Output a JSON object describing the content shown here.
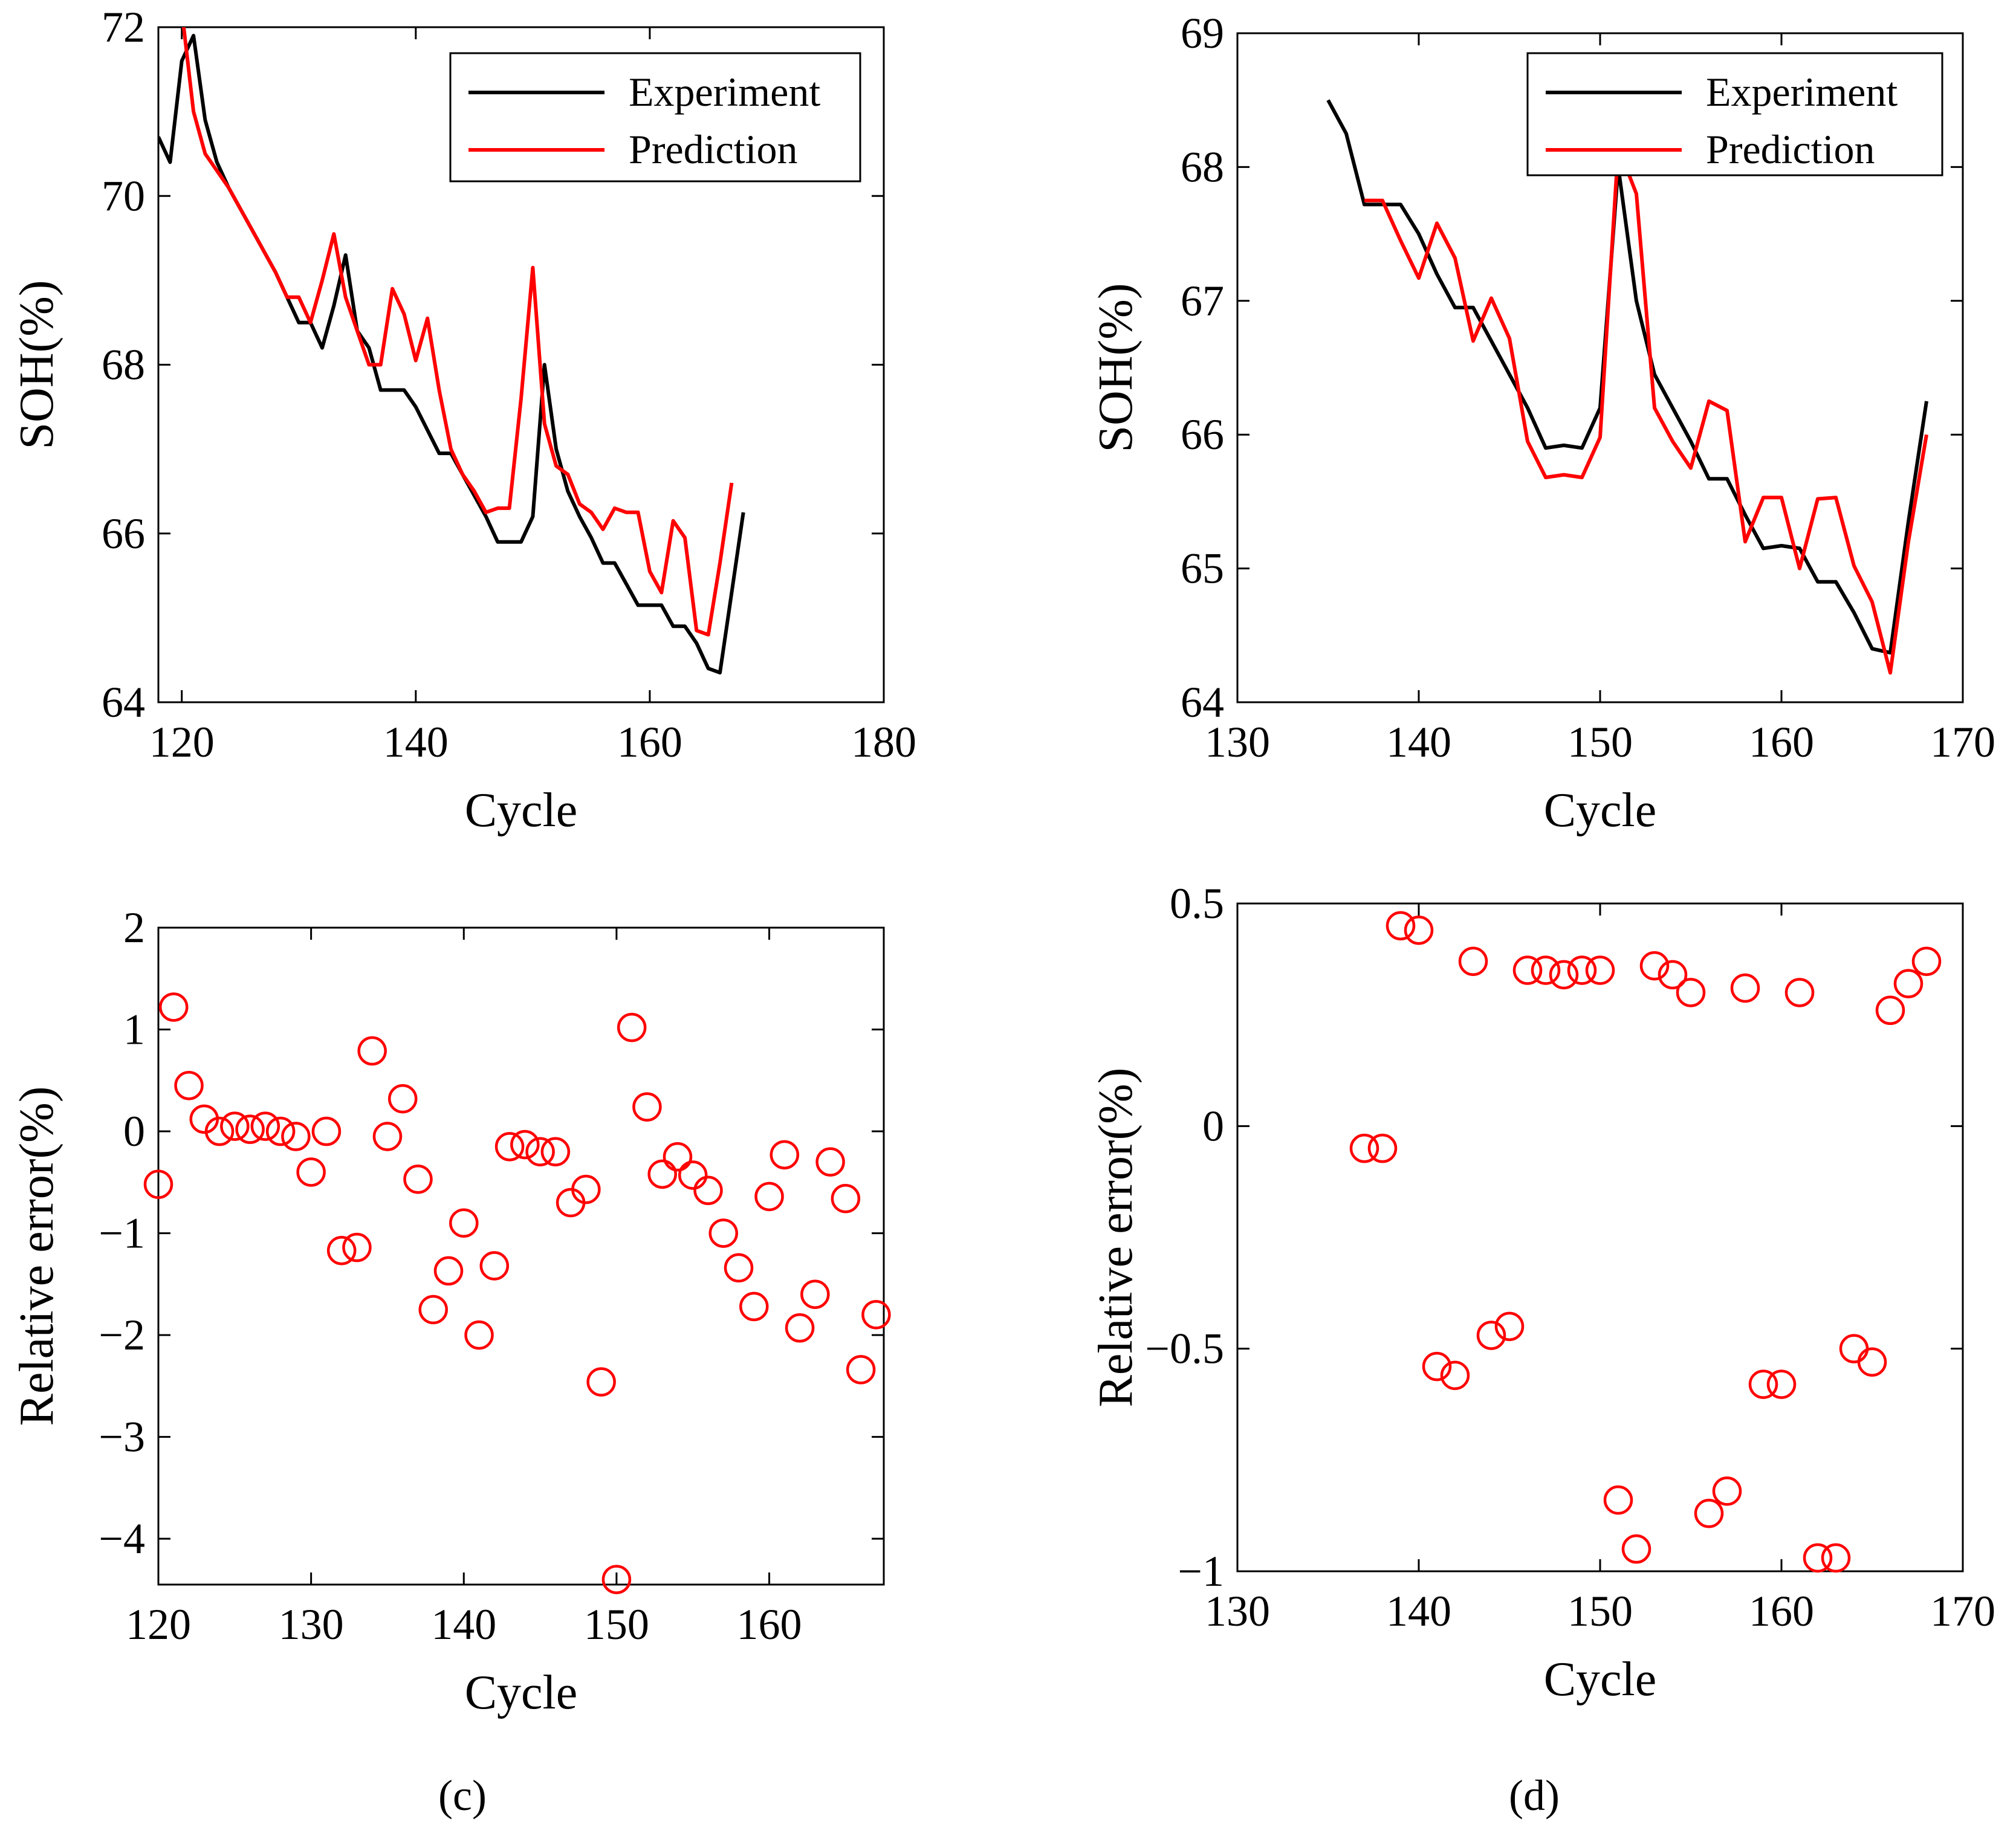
{
  "colors": {
    "experiment": "#000000",
    "prediction": "#ff0000",
    "axis": "#000000"
  },
  "chart_data": [
    {
      "id": "a",
      "type": "line",
      "title": "",
      "xlabel": "Cycle",
      "ylabel": "SOH(%)",
      "xlim": [
        118,
        180
      ],
      "ylim": [
        64,
        72
      ],
      "xticks": [
        120,
        140,
        160,
        180
      ],
      "yticks": [
        64,
        66,
        68,
        70,
        72
      ],
      "legend": {
        "position": "top-right",
        "entries": [
          "Experiment",
          "Prediction"
        ]
      },
      "series": [
        {
          "name": "Experiment",
          "color": "#000000",
          "x": [
            118,
            119,
            120,
            121,
            122,
            123,
            124,
            126,
            128,
            130,
            131,
            132,
            133,
            134,
            135,
            136,
            137,
            138,
            139,
            140,
            142,
            143,
            144,
            145,
            146,
            147,
            148,
            149,
            150,
            151,
            152,
            153,
            154,
            155,
            156,
            157,
            158,
            159,
            160,
            161,
            162,
            163,
            164,
            165,
            166,
            167,
            168
          ],
          "y": [
            70.7,
            70.4,
            71.6,
            71.9,
            70.9,
            70.4,
            70.1,
            69.6,
            69.1,
            68.5,
            68.5,
            68.2,
            68.7,
            69.3,
            68.4,
            68.2,
            67.7,
            67.7,
            67.7,
            67.5,
            66.95,
            66.95,
            66.7,
            66.45,
            66.2,
            65.9,
            65.9,
            65.9,
            66.2,
            68.0,
            67.0,
            66.5,
            66.2,
            65.95,
            65.65,
            65.65,
            65.4,
            65.15,
            65.15,
            65.15,
            64.9,
            64.9,
            64.7,
            64.4,
            64.35,
            65.3,
            66.25
          ]
        },
        {
          "name": "Prediction",
          "color": "#ff0000",
          "x": [
            120,
            121,
            122,
            123,
            124,
            126,
            128,
            129,
            130,
            131,
            132,
            133,
            134,
            135,
            136,
            137,
            138,
            139,
            140,
            141,
            142,
            143,
            144,
            145,
            146,
            147,
            148,
            149,
            150,
            151,
            152,
            153,
            154,
            155,
            156,
            157,
            158,
            159,
            160,
            161,
            162,
            163,
            164,
            165,
            166,
            167
          ],
          "y": [
            72.2,
            71.0,
            70.5,
            70.3,
            70.1,
            69.6,
            69.1,
            68.8,
            68.8,
            68.5,
            69.0,
            69.55,
            68.8,
            68.4,
            68.0,
            68.0,
            68.9,
            68.6,
            68.05,
            68.55,
            67.7,
            67.0,
            66.7,
            66.5,
            66.25,
            66.3,
            66.3,
            67.6,
            69.15,
            67.3,
            66.8,
            66.7,
            66.35,
            66.25,
            66.05,
            66.3,
            66.25,
            66.25,
            65.55,
            65.3,
            66.15,
            65.95,
            64.85,
            64.8,
            65.65,
            66.6
          ]
        }
      ]
    },
    {
      "id": "b",
      "type": "line",
      "title": "",
      "xlabel": "Cycle",
      "ylabel": "SOH(%)",
      "xlim": [
        130,
        170
      ],
      "ylim": [
        64,
        69
      ],
      "xticks": [
        130,
        140,
        150,
        160,
        170
      ],
      "yticks": [
        64,
        65,
        66,
        67,
        68,
        69
      ],
      "legend": {
        "position": "top-right",
        "entries": [
          "Experiment",
          "Prediction"
        ]
      },
      "series": [
        {
          "name": "Experiment",
          "color": "#000000",
          "x": [
            135,
            136,
            137,
            138,
            139,
            140,
            141,
            142,
            143,
            144,
            145,
            146,
            147,
            148,
            149,
            150,
            151,
            152,
            153,
            154,
            155,
            156,
            157,
            158,
            159,
            160,
            161,
            162,
            163,
            164,
            165,
            166,
            167,
            168
          ],
          "y": [
            68.5,
            68.25,
            67.72,
            67.72,
            67.72,
            67.5,
            67.2,
            66.95,
            66.95,
            66.7,
            66.45,
            66.2,
            65.9,
            65.92,
            65.9,
            66.2,
            68.0,
            67.0,
            66.45,
            66.2,
            65.95,
            65.67,
            65.67,
            65.4,
            65.15,
            65.17,
            65.15,
            64.9,
            64.9,
            64.67,
            64.4,
            64.37,
            65.35,
            66.25
          ]
        },
        {
          "name": "Prediction",
          "color": "#ff0000",
          "x": [
            137,
            138,
            139,
            140,
            141,
            142,
            143,
            144,
            145,
            146,
            147,
            148,
            149,
            150,
            151,
            152,
            153,
            154,
            155,
            156,
            157,
            158,
            159,
            160,
            161,
            162,
            163,
            164,
            165,
            166,
            167,
            168
          ],
          "y": [
            67.75,
            67.75,
            67.45,
            67.17,
            67.58,
            67.32,
            66.7,
            67.02,
            66.72,
            65.95,
            65.68,
            65.7,
            65.68,
            65.98,
            68.15,
            67.8,
            66.2,
            65.95,
            65.75,
            66.25,
            66.18,
            65.2,
            65.53,
            65.53,
            65.0,
            65.52,
            65.53,
            65.02,
            64.75,
            64.22,
            65.2,
            66.0
          ]
        }
      ]
    },
    {
      "id": "c",
      "type": "scatter",
      "title": "",
      "caption": "(c)",
      "xlabel": "Cycle",
      "ylabel": "Relative error(%)",
      "xlim": [
        120,
        167.5
      ],
      "ylim": [
        -4.45,
        2
      ],
      "xticks": [
        120,
        130,
        140,
        150,
        160
      ],
      "yticks": [
        -4,
        -3,
        -2,
        -1,
        0,
        1,
        2
      ],
      "ytick_labels": [
        "−4",
        "−3",
        "−2",
        "−1",
        "0",
        "1",
        "2"
      ],
      "series": [
        {
          "name": "Relative error",
          "color": "#ff0000",
          "marker": "circle",
          "x": [
            120,
            121,
            122,
            123,
            124,
            125,
            126,
            127,
            128,
            129,
            130,
            131,
            132,
            133,
            134,
            135,
            136,
            137,
            138,
            139,
            140,
            141,
            142,
            143,
            144,
            145,
            146,
            147,
            148,
            149,
            150,
            151,
            152,
            153,
            154,
            155,
            156,
            157,
            158,
            159,
            160,
            161,
            162,
            163,
            164,
            165,
            166,
            167
          ],
          "y": [
            -0.52,
            1.22,
            0.45,
            0.12,
            0.0,
            0.05,
            0.02,
            0.05,
            0.0,
            -0.05,
            -0.4,
            0.0,
            -1.17,
            -1.14,
            0.79,
            -0.05,
            0.32,
            -0.47,
            -1.75,
            -1.37,
            -0.9,
            -2.0,
            -1.32,
            -0.15,
            -0.13,
            -0.2,
            -0.2,
            -0.7,
            -0.57,
            -2.46,
            -4.4,
            1.02,
            0.24,
            -0.42,
            -0.25,
            -0.43,
            -0.58,
            -1.0,
            -1.34,
            -1.72,
            -0.64,
            -0.23,
            -1.93,
            -1.6,
            -0.3,
            -0.66,
            -2.34,
            -1.8
          ]
        }
      ]
    },
    {
      "id": "d",
      "type": "scatter",
      "title": "",
      "caption": "(d)",
      "xlabel": "Cycle",
      "ylabel": "Relative error(%)",
      "xlim": [
        130,
        170
      ],
      "ylim": [
        -1,
        0.5
      ],
      "xticks": [
        130,
        140,
        150,
        160,
        170
      ],
      "yticks": [
        -1,
        -0.5,
        0,
        0.5
      ],
      "ytick_labels": [
        "−1",
        "−0.5",
        "0",
        "0.5"
      ],
      "series": [
        {
          "name": "Relative error",
          "color": "#ff0000",
          "marker": "circle",
          "x": [
            137,
            138,
            139,
            140,
            141,
            142,
            143,
            144,
            145,
            146,
            147,
            148,
            149,
            150,
            151,
            152,
            153,
            154,
            155,
            156,
            157,
            158,
            159,
            160,
            161,
            162,
            163,
            164,
            165,
            166,
            167,
            168
          ],
          "y": [
            -0.05,
            -0.05,
            0.45,
            0.44,
            -0.54,
            -0.56,
            0.37,
            -0.47,
            -0.45,
            0.35,
            0.35,
            0.34,
            0.35,
            0.35,
            -0.84,
            -0.95,
            0.36,
            0.34,
            0.3,
            -0.87,
            -0.82,
            0.31,
            -0.58,
            -0.58,
            0.3,
            -0.97,
            -0.97,
            -0.5,
            -0.53,
            0.26,
            0.32,
            0.37
          ]
        }
      ]
    }
  ]
}
